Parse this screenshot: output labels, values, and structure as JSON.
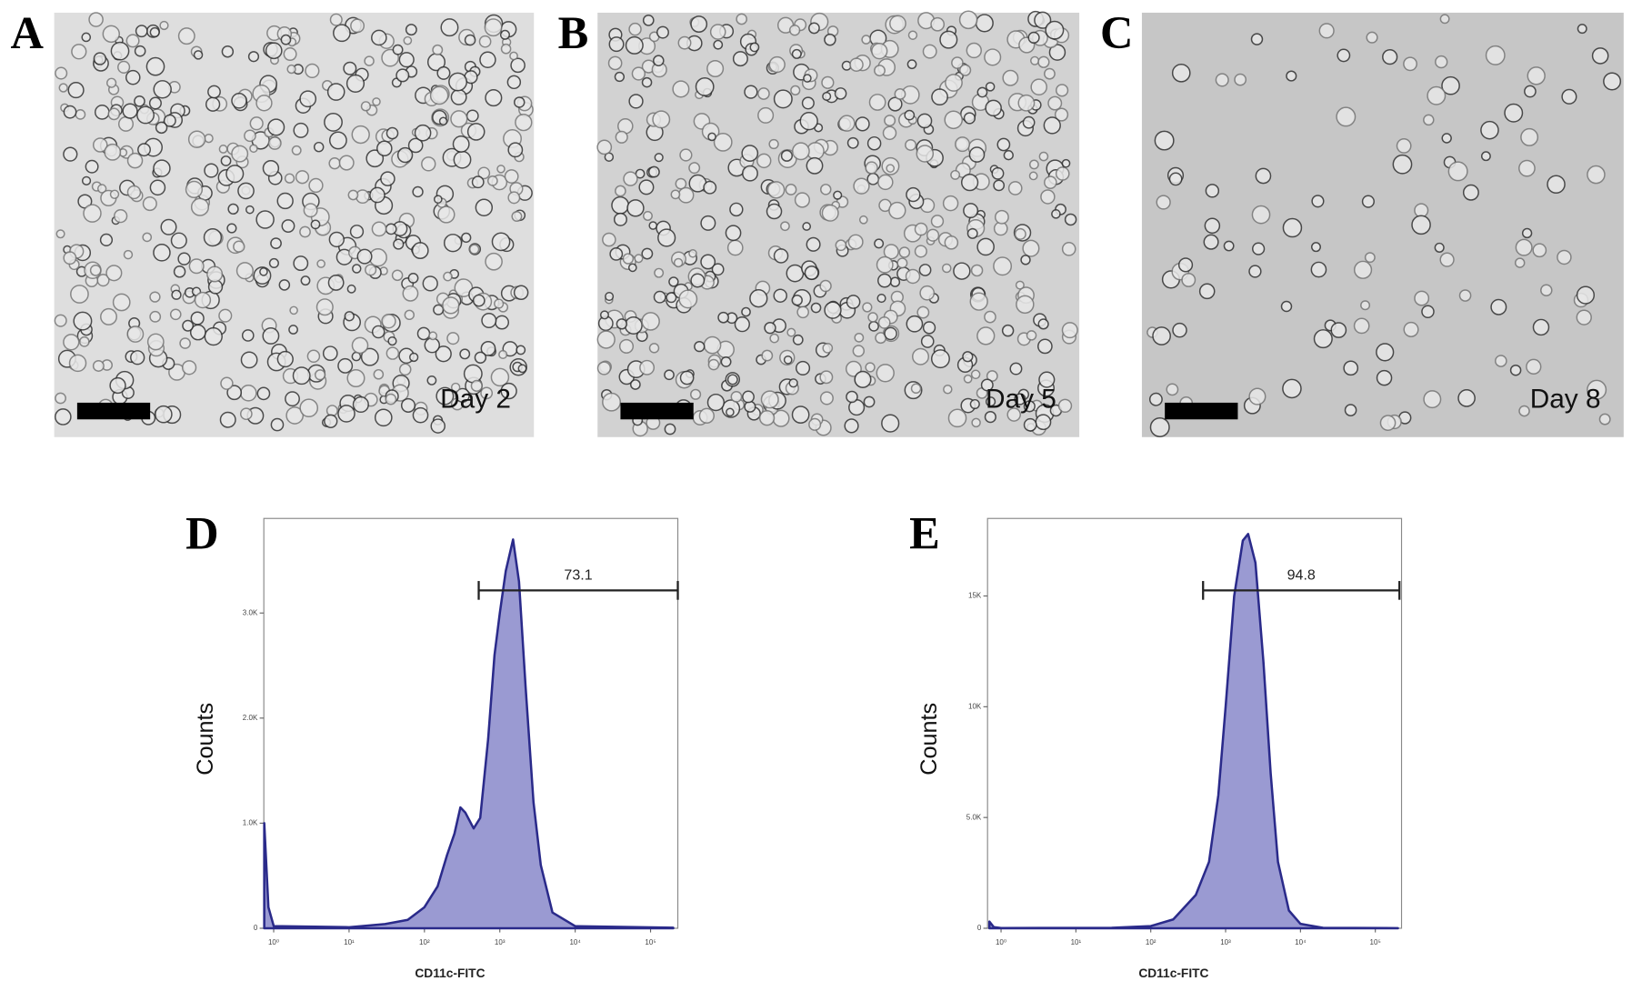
{
  "panels": [
    {
      "label": "A",
      "caption": "Day 2"
    },
    {
      "label": "B",
      "caption": "Day 5"
    },
    {
      "label": "C",
      "caption": "Day 8"
    }
  ],
  "chart_data": [
    {
      "type": "area",
      "label": "D",
      "log_x": true,
      "color": "#9a9ad2",
      "line_color": "#2a2a8a",
      "x": [
        0.75,
        0.85,
        1,
        10,
        30,
        60,
        100,
        150,
        200,
        250,
        300,
        350,
        450,
        550,
        700,
        850,
        1000,
        1200,
        1500,
        1800,
        2200,
        2800,
        3500,
        5000,
        10000,
        200000
      ],
      "values": [
        1000,
        200,
        20,
        10,
        40,
        80,
        200,
        400,
        700,
        900,
        1150,
        1100,
        950,
        1050,
        1800,
        2600,
        3000,
        3400,
        3700,
        3300,
        2300,
        1200,
        600,
        150,
        20,
        5
      ],
      "xlim": [
        0.74,
        230000
      ],
      "ylim": [
        0,
        3900
      ],
      "xticks": [
        {
          "value": 1,
          "label": "10⁰"
        },
        {
          "value": 10,
          "label": "10¹"
        },
        {
          "value": 100,
          "label": "10²"
        },
        {
          "value": 1000,
          "label": "10³"
        },
        {
          "value": 10000,
          "label": "10⁴"
        },
        {
          "value": 100000,
          "label": "10⁵"
        }
      ],
      "yticks": [
        0,
        {
          "value": 1000,
          "label": "1.0K"
        },
        {
          "value": 2000,
          "label": "2.0K"
        },
        {
          "value": 3000,
          "label": "3.0K"
        }
      ],
      "xlabel": "CD11c-FITC",
      "ylabel": "Counts",
      "gate_range": [
        525,
        230000
      ],
      "gate_value": 73.1
    },
    {
      "type": "area",
      "label": "E",
      "log_x": true,
      "color": "#9a9ad2",
      "line_color": "#2a2a8a",
      "x": [
        0.7,
        0.8,
        1,
        30,
        100,
        200,
        400,
        600,
        800,
        1000,
        1300,
        1700,
        2000,
        2500,
        3200,
        4000,
        5000,
        7000,
        10000,
        20000,
        200000
      ],
      "values": [
        300,
        50,
        10,
        20,
        100,
        400,
        1500,
        3000,
        6000,
        10000,
        15000,
        17500,
        17800,
        16500,
        12000,
        7000,
        3000,
        800,
        200,
        20,
        5
      ],
      "xlim": [
        0.66,
        224000
      ],
      "ylim": [
        0,
        18500
      ],
      "xticks": [
        {
          "value": 1,
          "label": "10⁰"
        },
        {
          "value": 10,
          "label": "10¹"
        },
        {
          "value": 100,
          "label": "10²"
        },
        {
          "value": 1000,
          "label": "10³"
        },
        {
          "value": 10000,
          "label": "10⁴"
        },
        {
          "value": 100000,
          "label": "10⁵"
        }
      ],
      "yticks": [
        0,
        {
          "value": 5000,
          "label": "5.0K"
        },
        {
          "value": 10000,
          "label": "10K"
        },
        {
          "value": 15000,
          "label": "15K"
        }
      ],
      "xlabel": "CD11c-FITC",
      "ylabel": "Counts",
      "gate_range": [
        500,
        210000
      ],
      "gate_value": 94.8
    }
  ]
}
